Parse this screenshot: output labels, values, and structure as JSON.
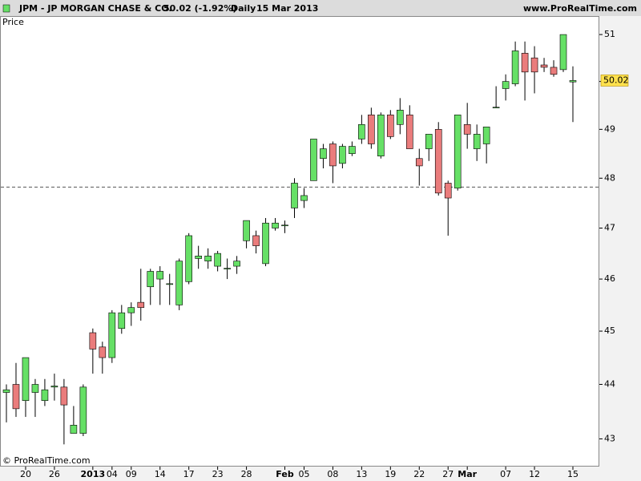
{
  "chart_data": {
    "type": "candlestick",
    "symbol": "JPM - JP MORGAN CHASE & CO.",
    "change": "50.02 (-1.92%)",
    "period": "Daily",
    "date": "15 Mar 2013",
    "site": "www.ProRealTime.com",
    "panel_label": "Price",
    "copyright": "© ProRealTime.com",
    "categories": [
      null,
      null,
      "20",
      null,
      null,
      "26",
      null,
      null,
      null,
      "2013",
      null,
      "04",
      null,
      "09",
      null,
      null,
      "14",
      null,
      null,
      "17",
      null,
      null,
      "23",
      null,
      null,
      "28",
      null,
      null,
      null,
      "Feb",
      null,
      "05",
      null,
      null,
      "08",
      null,
      null,
      "13",
      null,
      null,
      "19",
      null,
      null,
      "22",
      null,
      null,
      "27",
      null,
      "Mar",
      null,
      null,
      null,
      "07",
      null,
      null,
      "12",
      null,
      null,
      null,
      "15"
    ],
    "open": [
      43.85,
      44.0,
      43.7,
      43.85,
      43.7,
      43.95,
      43.95,
      43.1,
      43.1,
      44.97,
      44.7,
      44.5,
      45.05,
      45.35,
      45.55,
      45.85,
      46.0,
      45.9,
      45.5,
      45.95,
      46.4,
      46.35,
      46.25,
      46.2,
      46.25,
      46.75,
      46.85,
      46.3,
      47.0,
      47.05,
      47.4,
      47.55,
      47.95,
      48.4,
      48.7,
      48.3,
      48.5,
      48.8,
      49.3,
      48.45,
      49.3,
      49.1,
      49.3,
      48.4,
      48.6,
      49.0,
      47.9,
      47.8,
      49.1,
      48.6,
      48.7,
      49.45,
      49.85,
      49.95,
      50.6,
      50.5,
      50.35,
      50.3,
      50.25,
      49.99
    ],
    "high": [
      44.0,
      44.4,
      44.5,
      44.1,
      44.1,
      44.2,
      44.1,
      43.6,
      44.0,
      45.05,
      44.8,
      45.4,
      45.5,
      45.55,
      46.2,
      46.2,
      46.25,
      46.1,
      46.4,
      46.9,
      46.65,
      46.6,
      46.55,
      46.4,
      46.45,
      47.15,
      46.95,
      47.2,
      47.2,
      47.15,
      48.0,
      47.8,
      48.8,
      48.7,
      48.75,
      48.7,
      48.75,
      49.3,
      49.45,
      49.35,
      49.4,
      49.65,
      49.5,
      48.6,
      48.9,
      49.15,
      47.95,
      49.3,
      49.55,
      49.1,
      49.05,
      49.9,
      50.15,
      50.85,
      50.85,
      50.75,
      50.5,
      50.45,
      51.0,
      50.32
    ],
    "low": [
      43.3,
      43.4,
      43.4,
      43.4,
      43.6,
      43.7,
      42.9,
      43.1,
      43.05,
      44.2,
      44.2,
      44.4,
      44.95,
      45.1,
      45.2,
      45.5,
      45.5,
      45.5,
      45.4,
      45.9,
      46.2,
      46.2,
      46.15,
      46.0,
      46.1,
      46.6,
      46.5,
      46.25,
      46.95,
      46.9,
      47.2,
      47.4,
      47.95,
      48.2,
      47.9,
      48.2,
      48.45,
      48.7,
      48.6,
      48.4,
      48.8,
      48.9,
      48.6,
      47.85,
      48.35,
      47.65,
      46.85,
      47.75,
      48.6,
      48.35,
      48.3,
      49.45,
      49.6,
      49.9,
      49.6,
      49.75,
      50.2,
      50.1,
      50.2,
      49.15
    ],
    "close": [
      43.9,
      43.55,
      44.5,
      44.0,
      43.9,
      43.97,
      43.62,
      43.25,
      43.95,
      44.66,
      44.5,
      45.35,
      45.35,
      45.45,
      45.45,
      46.15,
      46.15,
      45.91,
      46.35,
      46.85,
      46.45,
      46.45,
      46.5,
      46.21,
      46.35,
      47.15,
      46.65,
      47.1,
      47.1,
      47.06,
      47.9,
      47.65,
      48.8,
      48.6,
      48.25,
      48.65,
      48.65,
      49.1,
      48.7,
      49.3,
      48.85,
      49.4,
      48.6,
      48.25,
      48.9,
      47.7,
      47.6,
      49.3,
      48.9,
      48.9,
      49.05,
      49.46,
      50.0,
      50.65,
      50.2,
      50.2,
      50.3,
      50.15,
      51.0,
      50.02
    ],
    "up_color": "#66e066",
    "down_color": "#ea7c7c",
    "last_price": 50.02,
    "hline": 47.82,
    "ylim": [
      42.5,
      51.4
    ],
    "yticks": [
      43,
      44,
      45,
      46,
      47,
      48,
      49,
      50,
      51
    ],
    "log_scale": true
  }
}
